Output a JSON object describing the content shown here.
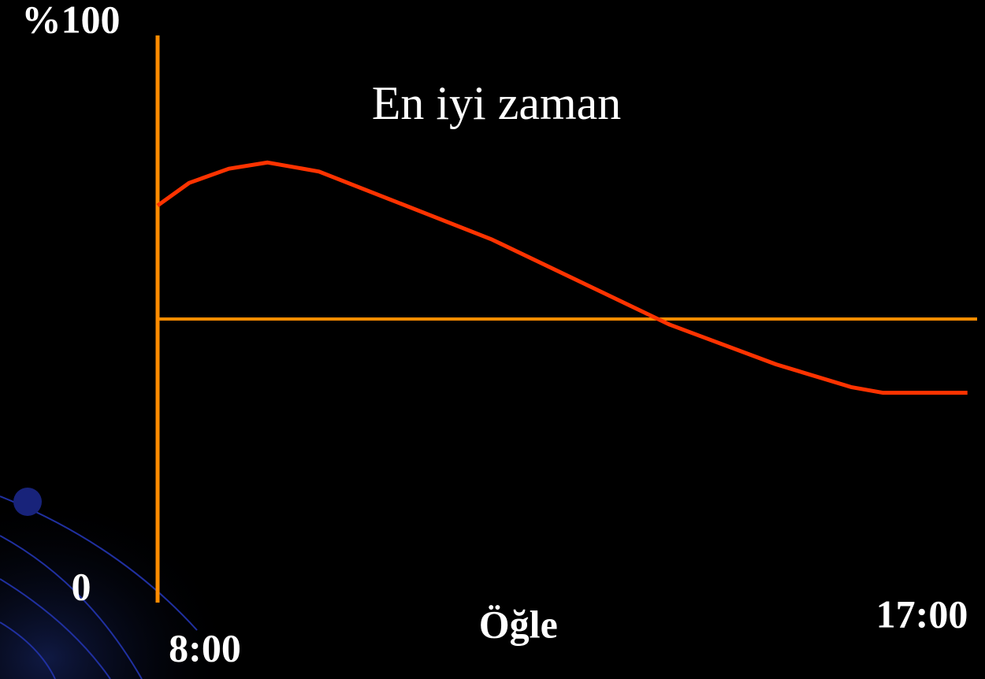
{
  "chart_data": {
    "type": "line",
    "title": "En iyi zaman",
    "x": [
      8,
      8.35,
      8.79,
      9.22,
      9.79,
      11.71,
      13.68,
      14.86,
      15.69,
      16.04,
      16.98
    ],
    "series": [
      {
        "color": "#ff3300",
        "values": [
          70,
          74,
          76.5,
          77.6,
          76,
          64,
          49,
          42,
          38,
          37,
          37
        ]
      }
    ],
    "xlim": [
      8,
      17
    ],
    "xticks": [
      {
        "value": 8,
        "label": "8:00"
      },
      {
        "value": 12,
        "label": "Öğle"
      },
      {
        "value": 17,
        "label": "17:00"
      }
    ],
    "ylim": [
      0,
      100
    ],
    "yticks": [
      0,
      {
        "value": 100,
        "label": "%100"
      }
    ],
    "reference_line": 50,
    "axis_color": "#ff8c00"
  }
}
